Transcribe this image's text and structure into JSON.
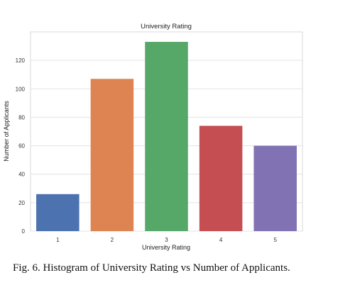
{
  "chart_data": {
    "type": "bar",
    "title": "University Rating",
    "xlabel": "University Rating",
    "ylabel": "Number of Applicants",
    "categories": [
      "1",
      "2",
      "3",
      "4",
      "5"
    ],
    "values": [
      26,
      107,
      133,
      74,
      60
    ],
    "colors": [
      "#4c72b0",
      "#dd8452",
      "#55a868",
      "#c44e52",
      "#8172b3"
    ],
    "ylim": [
      0,
      140
    ],
    "yticks": [
      0,
      20,
      40,
      60,
      80,
      100,
      120
    ],
    "grid": true,
    "legend": "none"
  },
  "caption": "Fig. 6. Histogram of University Rating vs Number of Applicants."
}
